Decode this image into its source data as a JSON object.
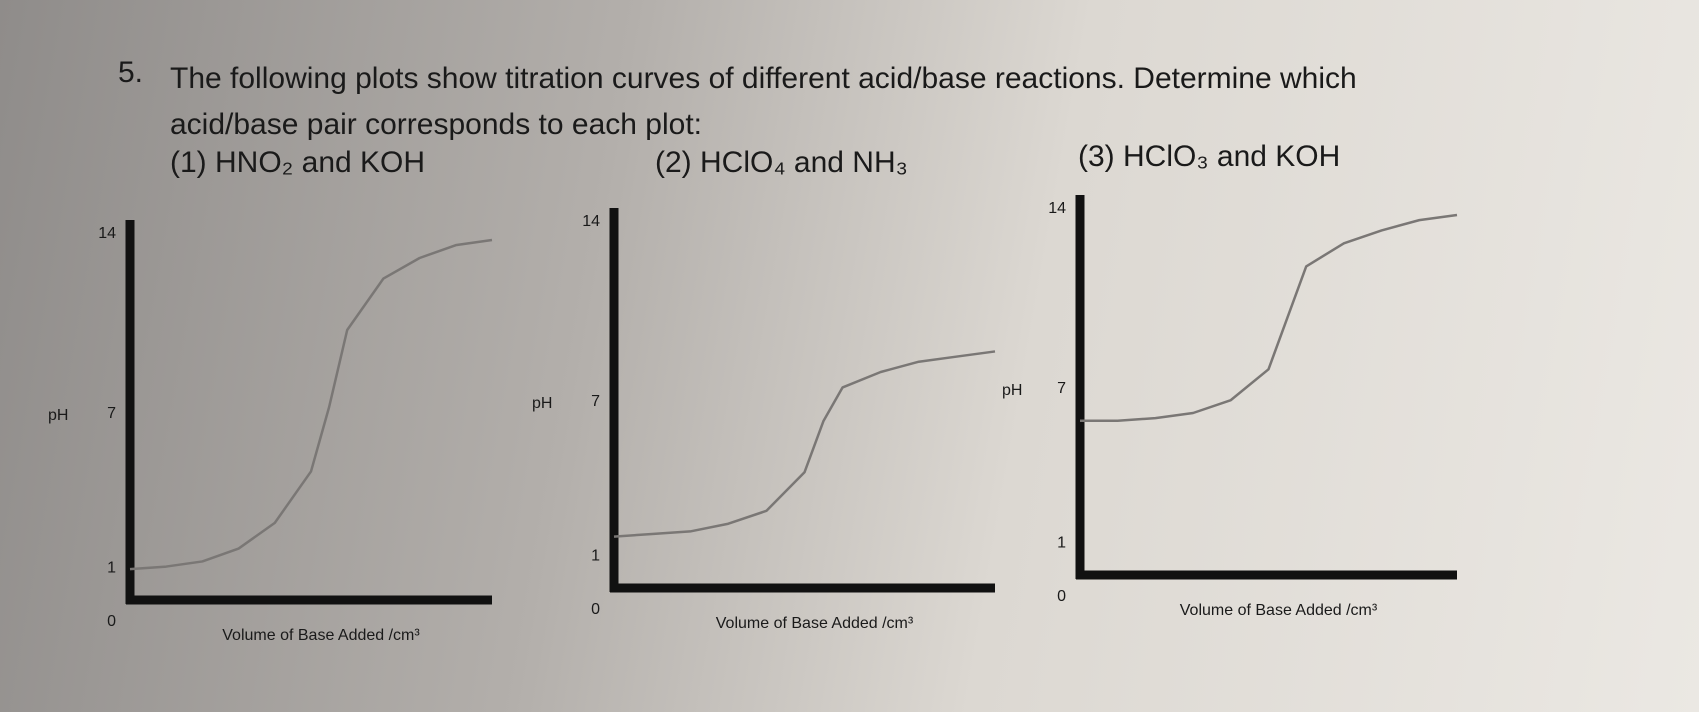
{
  "question": {
    "number": "5.",
    "text": "The following plots show titration curves of different acid/base reactions. Determine which acid/base pair corresponds to each plot:",
    "options": [
      "(1) HNO₂ and KOH",
      "(2) HClO₄ and NH₃",
      "(3) HClO₃ and KOH"
    ]
  },
  "chart_data": [
    {
      "type": "line",
      "ylabel": "pH",
      "xlabel": "Volume of Base Added /cm³",
      "color": "#7a7775",
      "x": [
        0,
        1,
        2,
        3,
        4,
        5,
        5.5,
        6,
        7,
        8,
        9,
        10
      ],
      "values": [
        1.2,
        1.3,
        1.5,
        2.0,
        3.0,
        5.0,
        7.5,
        10.5,
        12.5,
        13.3,
        13.8,
        14.0
      ],
      "xlim": [
        0,
        10
      ],
      "ylim": [
        0,
        14
      ],
      "yticks": [
        0,
        1,
        7,
        14
      ]
    },
    {
      "type": "line",
      "ylabel": "pH",
      "xlabel": "Volume of Base Added /cm³",
      "color": "#7a7775",
      "x": [
        0,
        1,
        2,
        3,
        4,
        5,
        5.5,
        6,
        7,
        8,
        9,
        10
      ],
      "values": [
        2.0,
        2.1,
        2.2,
        2.5,
        3.0,
        4.5,
        6.5,
        7.8,
        8.4,
        8.8,
        9.0,
        9.2
      ],
      "xlim": [
        0,
        10
      ],
      "ylim": [
        0,
        14
      ],
      "yticks": [
        0,
        1,
        7,
        14
      ]
    },
    {
      "type": "line",
      "ylabel": "pH",
      "xlabel": "Volume of Base Added /cm³",
      "color": "#7a7775",
      "x": [
        0,
        1,
        2,
        3,
        4,
        5,
        5.5,
        6,
        7,
        8,
        9,
        10
      ],
      "values": [
        6.0,
        6.0,
        6.1,
        6.3,
        6.8,
        8.0,
        10.0,
        12.0,
        12.9,
        13.4,
        13.8,
        14.0
      ],
      "xlim": [
        0,
        10
      ],
      "ylim": [
        0,
        14
      ],
      "yticks": [
        0,
        1,
        7,
        14
      ]
    }
  ]
}
